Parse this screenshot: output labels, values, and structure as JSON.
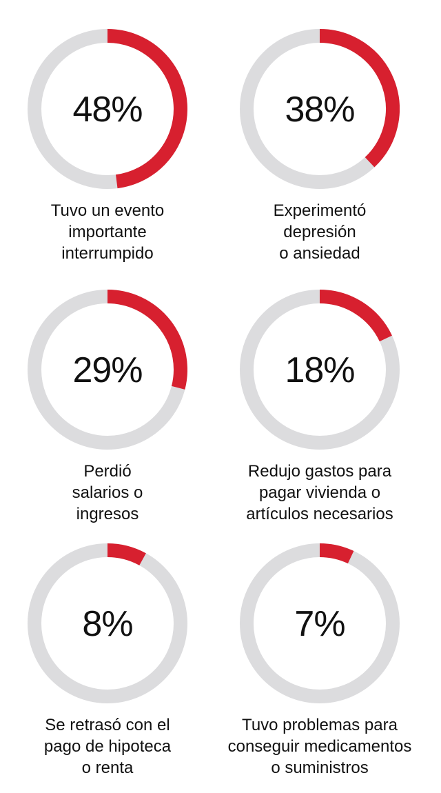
{
  "colors": {
    "filled": "#d7202f",
    "track": "#dcdcde",
    "text": "#111111"
  },
  "chart_data": [
    {
      "type": "pie",
      "value": 48,
      "value_label": "48%",
      "label": "Tuvo un evento\nimportante\ninterrumpido"
    },
    {
      "type": "pie",
      "value": 38,
      "value_label": "38%",
      "label": "Experimentó\ndepresión\no ansiedad"
    },
    {
      "type": "pie",
      "value": 29,
      "value_label": "29%",
      "label": "Perdió\nsalarios o\ningresos"
    },
    {
      "type": "pie",
      "value": 18,
      "value_label": "18%",
      "label": "Redujo gastos para\npagar vivienda o\nartículos necesarios"
    },
    {
      "type": "pie",
      "value": 8,
      "value_label": "8%",
      "label": "Se retrasó con el\npago de hipoteca\no renta"
    },
    {
      "type": "pie",
      "value": 7,
      "value_label": "7%",
      "label": "Tuvo problemas para\nconseguir medicamentos\no suministros"
    }
  ]
}
